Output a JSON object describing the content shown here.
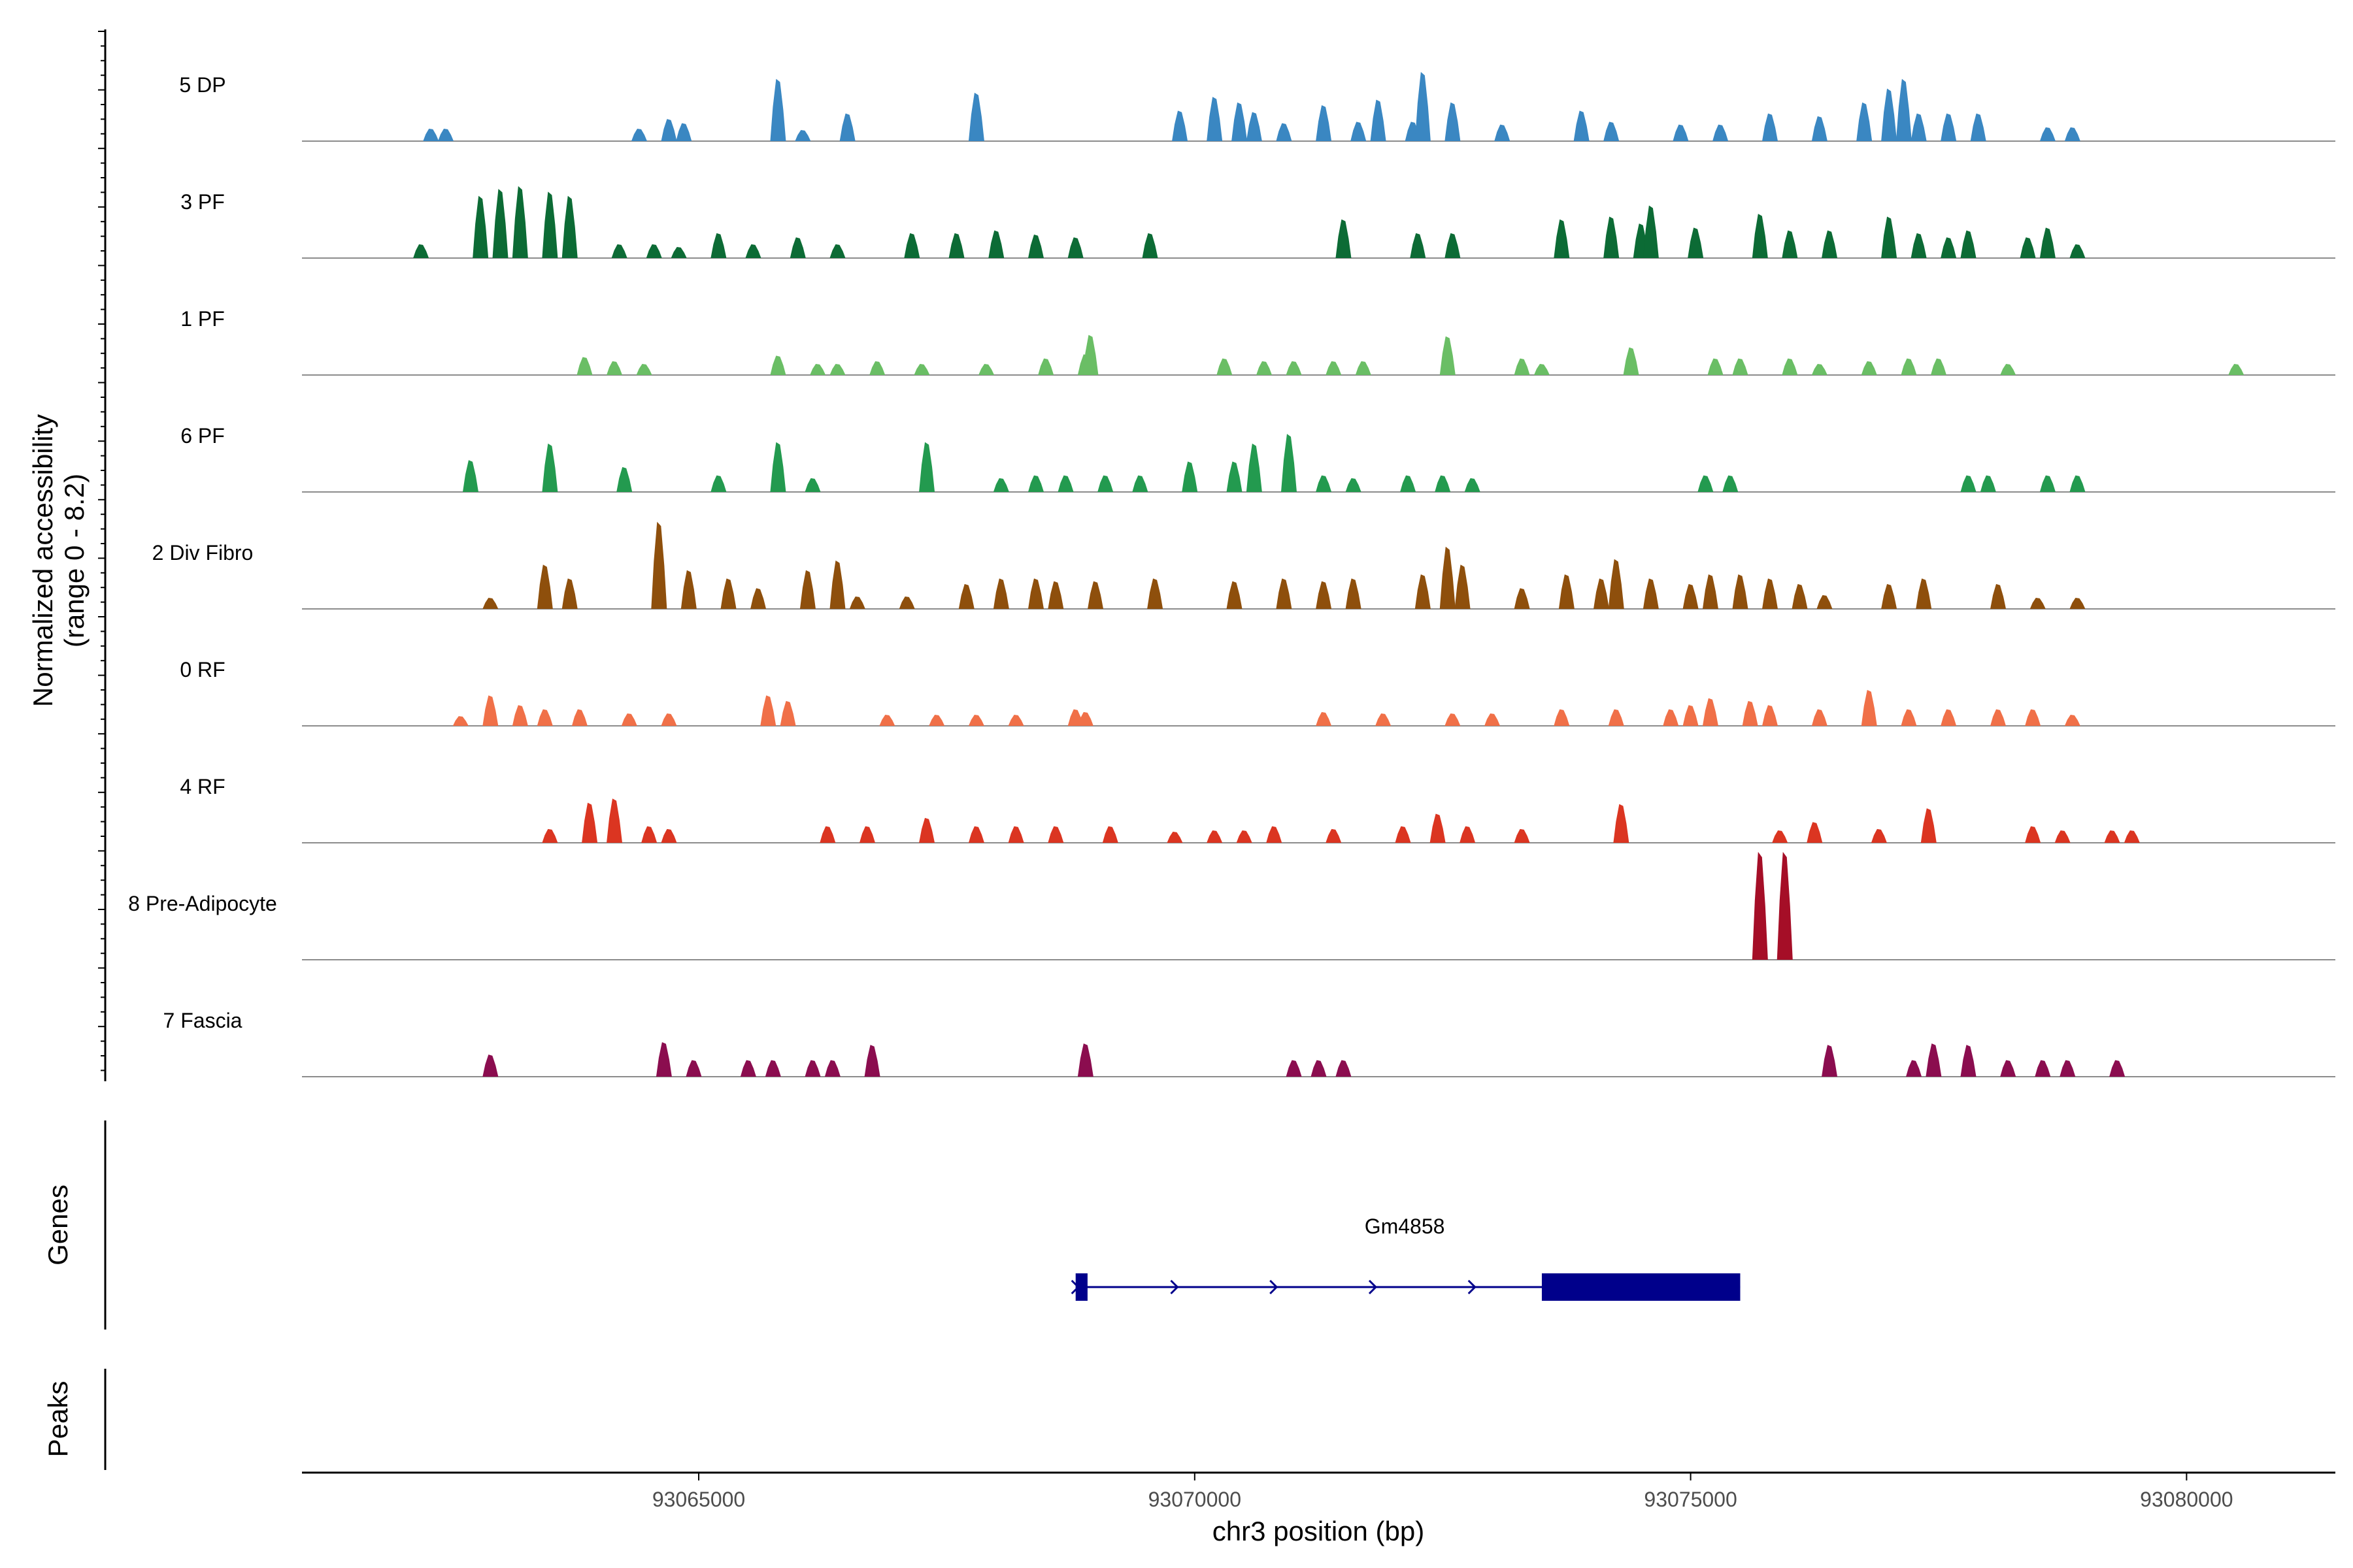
{
  "chart_data": {
    "type": "area",
    "title": "",
    "y_axis_label_line1": "Normalized accessibility",
    "y_axis_label_line2": "(range 0 - 8.2)",
    "y_range": [
      0,
      8.2
    ],
    "xlabel": "chr3 position (bp)",
    "x_range": [
      93061000,
      93081500
    ],
    "x_ticks": [
      93065000,
      93070000,
      93075000,
      93080000
    ],
    "x_tick_labels": [
      "93065000",
      "93070000",
      "93075000",
      "93080000"
    ],
    "tracks": [
      {
        "name": "5 DP",
        "color": "#3a87c2",
        "peaks": [
          [
            93062300,
            0.9
          ],
          [
            93062450,
            0.9
          ],
          [
            93064400,
            0.9
          ],
          [
            93064700,
            1.6
          ],
          [
            93064850,
            1.3
          ],
          [
            93065800,
            4.5
          ],
          [
            93066050,
            0.8
          ],
          [
            93066500,
            2.0
          ],
          [
            93067800,
            3.5
          ],
          [
            93069850,
            2.2
          ],
          [
            93070200,
            3.2
          ],
          [
            93070450,
            2.8
          ],
          [
            93070600,
            2.1
          ],
          [
            93070900,
            1.3
          ],
          [
            93071300,
            2.6
          ],
          [
            93071650,
            1.4
          ],
          [
            93071850,
            3.0
          ],
          [
            93072200,
            1.4
          ],
          [
            93072300,
            5.0
          ],
          [
            93072600,
            2.8
          ],
          [
            93073100,
            1.2
          ],
          [
            93073900,
            2.2
          ],
          [
            93074200,
            1.4
          ],
          [
            93074900,
            1.2
          ],
          [
            93075300,
            1.2
          ],
          [
            93075800,
            2.0
          ],
          [
            93076300,
            1.8
          ],
          [
            93076750,
            2.8
          ],
          [
            93077000,
            3.8
          ],
          [
            93077150,
            4.5
          ],
          [
            93077300,
            2.0
          ],
          [
            93077600,
            2.0
          ],
          [
            93077900,
            2.0
          ],
          [
            93078600,
            1.0
          ],
          [
            93078850,
            1.0
          ]
        ]
      },
      {
        "name": "3 PF",
        "color": "#0c6b35",
        "peaks": [
          [
            93062200,
            1.0
          ],
          [
            93062800,
            4.5
          ],
          [
            93063000,
            5.0
          ],
          [
            93063200,
            5.2
          ],
          [
            93063500,
            4.8
          ],
          [
            93063700,
            4.5
          ],
          [
            93064200,
            1.0
          ],
          [
            93064550,
            1.0
          ],
          [
            93064800,
            0.8
          ],
          [
            93065200,
            1.8
          ],
          [
            93065550,
            1.0
          ],
          [
            93066000,
            1.5
          ],
          [
            93066400,
            1.0
          ],
          [
            93067150,
            1.8
          ],
          [
            93067600,
            1.8
          ],
          [
            93068000,
            2.0
          ],
          [
            93068400,
            1.7
          ],
          [
            93068800,
            1.5
          ],
          [
            93069550,
            1.8
          ],
          [
            93071500,
            2.8
          ],
          [
            93072250,
            1.8
          ],
          [
            93072600,
            1.8
          ],
          [
            93073700,
            2.8
          ],
          [
            93074200,
            3.0
          ],
          [
            93074500,
            2.5
          ],
          [
            93074600,
            3.8
          ],
          [
            93075050,
            2.2
          ],
          [
            93075700,
            3.2
          ],
          [
            93076000,
            2.0
          ],
          [
            93076400,
            2.0
          ],
          [
            93077000,
            3.0
          ],
          [
            93077300,
            1.8
          ],
          [
            93077600,
            1.5
          ],
          [
            93077800,
            2.0
          ],
          [
            93078400,
            1.5
          ],
          [
            93078600,
            2.2
          ],
          [
            93078900,
            1.0
          ]
        ]
      },
      {
        "name": "1 PF",
        "color": "#6abe65",
        "peaks": [
          [
            93063850,
            1.3
          ],
          [
            93064150,
            1.0
          ],
          [
            93064450,
            0.8
          ],
          [
            93065800,
            1.4
          ],
          [
            93066200,
            0.8
          ],
          [
            93066400,
            0.8
          ],
          [
            93066800,
            1.0
          ],
          [
            93067250,
            0.8
          ],
          [
            93067900,
            0.8
          ],
          [
            93068500,
            1.2
          ],
          [
            93068900,
            1.5
          ],
          [
            93068950,
            2.9
          ],
          [
            93070300,
            1.2
          ],
          [
            93070700,
            1.0
          ],
          [
            93071000,
            1.0
          ],
          [
            93071400,
            1.0
          ],
          [
            93071700,
            1.0
          ],
          [
            93072550,
            2.8
          ],
          [
            93073300,
            1.2
          ],
          [
            93073500,
            0.8
          ],
          [
            93074400,
            2.0
          ],
          [
            93075250,
            1.2
          ],
          [
            93075500,
            1.2
          ],
          [
            93076000,
            1.2
          ],
          [
            93076300,
            0.8
          ],
          [
            93076800,
            1.0
          ],
          [
            93077200,
            1.2
          ],
          [
            93077500,
            1.2
          ],
          [
            93078200,
            0.8
          ],
          [
            93080500,
            0.8
          ]
        ]
      },
      {
        "name": "6 PF",
        "color": "#239a4f",
        "peaks": [
          [
            93062700,
            2.3
          ],
          [
            93063500,
            3.5
          ],
          [
            93064250,
            1.8
          ],
          [
            93065200,
            1.2
          ],
          [
            93065800,
            3.6
          ],
          [
            93066150,
            1.0
          ],
          [
            93067300,
            3.6
          ],
          [
            93068050,
            1.0
          ],
          [
            93068400,
            1.2
          ],
          [
            93068700,
            1.2
          ],
          [
            93069100,
            1.2
          ],
          [
            93069450,
            1.2
          ],
          [
            93069950,
            2.2
          ],
          [
            93070400,
            2.2
          ],
          [
            93070600,
            3.5
          ],
          [
            93070950,
            4.2
          ],
          [
            93071300,
            1.2
          ],
          [
            93071600,
            1.0
          ],
          [
            93072150,
            1.2
          ],
          [
            93072500,
            1.2
          ],
          [
            93072800,
            1.0
          ],
          [
            93075150,
            1.2
          ],
          [
            93075400,
            1.2
          ],
          [
            93077800,
            1.2
          ],
          [
            93078000,
            1.2
          ],
          [
            93078600,
            1.2
          ],
          [
            93078900,
            1.2
          ]
        ]
      },
      {
        "name": "2 Div Fibro",
        "color": "#8e4f0c",
        "peaks": [
          [
            93062900,
            0.8
          ],
          [
            93063450,
            3.2
          ],
          [
            93063700,
            2.2
          ],
          [
            93064600,
            6.3
          ],
          [
            93064900,
            2.8
          ],
          [
            93065300,
            2.2
          ],
          [
            93065600,
            1.5
          ],
          [
            93066100,
            2.8
          ],
          [
            93066400,
            3.5
          ],
          [
            93066600,
            0.9
          ],
          [
            93067100,
            0.9
          ],
          [
            93067700,
            1.8
          ],
          [
            93068050,
            2.2
          ],
          [
            93068400,
            2.2
          ],
          [
            93068600,
            2.0
          ],
          [
            93069000,
            2.0
          ],
          [
            93069600,
            2.2
          ],
          [
            93070400,
            2.0
          ],
          [
            93070900,
            2.2
          ],
          [
            93071300,
            2.0
          ],
          [
            93071600,
            2.2
          ],
          [
            93072300,
            2.5
          ],
          [
            93072550,
            4.5
          ],
          [
            93072700,
            3.2
          ],
          [
            93073300,
            1.5
          ],
          [
            93073750,
            2.5
          ],
          [
            93074100,
            2.2
          ],
          [
            93074250,
            3.6
          ],
          [
            93074600,
            2.2
          ],
          [
            93075000,
            1.8
          ],
          [
            93075200,
            2.5
          ],
          [
            93075500,
            2.5
          ],
          [
            93075800,
            2.2
          ],
          [
            93076100,
            1.8
          ],
          [
            93076350,
            1.0
          ],
          [
            93077000,
            1.8
          ],
          [
            93077350,
            2.2
          ],
          [
            93078100,
            1.8
          ],
          [
            93078500,
            0.8
          ],
          [
            93078900,
            0.8
          ]
        ]
      },
      {
        "name": "0 RF",
        "color": "#f07048",
        "peaks": [
          [
            93062600,
            0.7
          ],
          [
            93062900,
            2.2
          ],
          [
            93063200,
            1.5
          ],
          [
            93063450,
            1.2
          ],
          [
            93063800,
            1.2
          ],
          [
            93064300,
            0.9
          ],
          [
            93064700,
            0.9
          ],
          [
            93065700,
            2.2
          ],
          [
            93065900,
            1.8
          ],
          [
            93066900,
            0.8
          ],
          [
            93067400,
            0.8
          ],
          [
            93067800,
            0.8
          ],
          [
            93068200,
            0.8
          ],
          [
            93068800,
            1.2
          ],
          [
            93068900,
            1.0
          ],
          [
            93071300,
            1.0
          ],
          [
            93071900,
            0.9
          ],
          [
            93072600,
            0.9
          ],
          [
            93073000,
            0.9
          ],
          [
            93073700,
            1.2
          ],
          [
            93074250,
            1.2
          ],
          [
            93074800,
            1.2
          ],
          [
            93075000,
            1.5
          ],
          [
            93075200,
            2.0
          ],
          [
            93075600,
            1.8
          ],
          [
            93075800,
            1.5
          ],
          [
            93076300,
            1.2
          ],
          [
            93076800,
            2.6
          ],
          [
            93077200,
            1.2
          ],
          [
            93077600,
            1.2
          ],
          [
            93078100,
            1.2
          ],
          [
            93078450,
            1.2
          ],
          [
            93078850,
            0.8
          ]
        ]
      },
      {
        "name": "4 RF",
        "color": "#db3521",
        "peaks": [
          [
            93063500,
            1.0
          ],
          [
            93063900,
            2.9
          ],
          [
            93064150,
            3.2
          ],
          [
            93064500,
            1.2
          ],
          [
            93064700,
            1.0
          ],
          [
            93066300,
            1.2
          ],
          [
            93066700,
            1.2
          ],
          [
            93067300,
            1.8
          ],
          [
            93067800,
            1.2
          ],
          [
            93068200,
            1.2
          ],
          [
            93068600,
            1.2
          ],
          [
            93069150,
            1.2
          ],
          [
            93069800,
            0.8
          ],
          [
            93070200,
            0.9
          ],
          [
            93070500,
            0.9
          ],
          [
            93070800,
            1.2
          ],
          [
            93071400,
            1.0
          ],
          [
            93072100,
            1.2
          ],
          [
            93072450,
            2.1
          ],
          [
            93072750,
            1.2
          ],
          [
            93073300,
            1.0
          ],
          [
            93074300,
            2.8
          ],
          [
            93075900,
            0.9
          ],
          [
            93076250,
            1.5
          ],
          [
            93076900,
            1.0
          ],
          [
            93077400,
            2.5
          ],
          [
            93078450,
            1.2
          ],
          [
            93078750,
            0.9
          ],
          [
            93079250,
            0.9
          ],
          [
            93079450,
            0.9
          ]
        ]
      },
      {
        "name": "8 Pre-Adipocyte",
        "color": "#a50e27",
        "peaks": [
          [
            93075700,
            7.8
          ],
          [
            93075950,
            7.8
          ]
        ]
      },
      {
        "name": "7 Fascia",
        "color": "#8b0d4f",
        "peaks": [
          [
            93062900,
            1.6
          ],
          [
            93064650,
            2.5
          ],
          [
            93064950,
            1.2
          ],
          [
            93065500,
            1.2
          ],
          [
            93065750,
            1.2
          ],
          [
            93066150,
            1.2
          ],
          [
            93066350,
            1.2
          ],
          [
            93066750,
            2.3
          ],
          [
            93068900,
            2.4
          ],
          [
            93071000,
            1.2
          ],
          [
            93071250,
            1.2
          ],
          [
            93071500,
            1.2
          ],
          [
            93076400,
            2.3
          ],
          [
            93077250,
            1.2
          ],
          [
            93077450,
            2.4
          ],
          [
            93077800,
            2.3
          ],
          [
            93078200,
            1.2
          ],
          [
            93078550,
            1.2
          ],
          [
            93078800,
            1.2
          ],
          [
            93079300,
            1.2
          ]
        ]
      }
    ],
    "gene": {
      "name": "Gm4858",
      "color": "#00008b",
      "start": 93068800,
      "end": 93075500,
      "strand": "+",
      "exons": [
        [
          93068800,
          93068920
        ],
        [
          93073500,
          93075500
        ]
      ]
    },
    "panels": {
      "genes_label": "Genes",
      "peaks_label": "Peaks"
    }
  }
}
